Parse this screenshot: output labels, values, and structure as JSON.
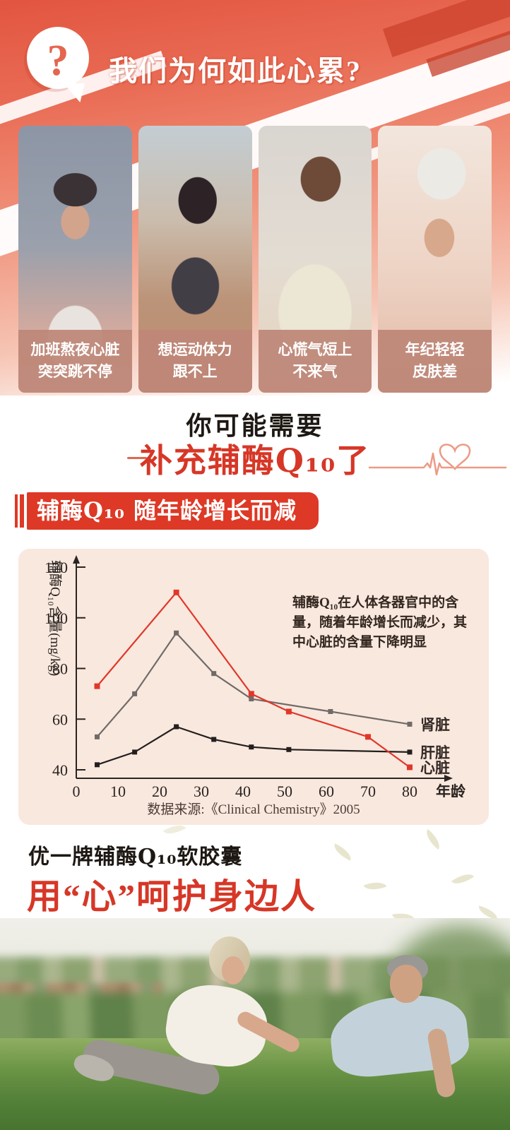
{
  "header": {
    "title": "我们为何如此心累?",
    "icon_glyph": "?"
  },
  "pain_points": [
    {
      "caption_line1": "加班熬夜心脏",
      "caption_line2": "突突跳不停"
    },
    {
      "caption_line1": "想运动体力",
      "caption_line2": "跟不上"
    },
    {
      "caption_line1": "心慌气短上",
      "caption_line2": "不来气"
    },
    {
      "caption_line1": "年纪轻轻",
      "caption_line2": "皮肤差"
    }
  ],
  "lead": {
    "line1": "你可能需要",
    "line2": "补充辅酶Q₁₀了"
  },
  "section": {
    "title": "辅酶Q₁₀ 随年龄增长而减少"
  },
  "chart_data": {
    "type": "line",
    "title": "",
    "xlabel": "年龄",
    "ylabel": "辅酶Q₁₀含量(mg/kg)",
    "xlim": [
      0,
      88
    ],
    "ylim": [
      36,
      124
    ],
    "x_ticks": [
      0,
      10,
      20,
      30,
      40,
      50,
      60,
      70,
      80
    ],
    "y_ticks": [
      40,
      60,
      80,
      100,
      120
    ],
    "grid": false,
    "legend_position": "line-end",
    "annotation": [
      "辅酶Q₁₀在人体各器官中的含",
      "量，随着年龄增长而减少，其",
      "中心脏的含量下降明显"
    ],
    "series": [
      {
        "name": "心脏",
        "color": "#e0372a",
        "points": [
          [
            5,
            73
          ],
          [
            24,
            110
          ],
          [
            42,
            70
          ],
          [
            51,
            63
          ],
          [
            70,
            53
          ],
          [
            80,
            41
          ]
        ]
      },
      {
        "name": "肾脏",
        "color": "#716b68",
        "points": [
          [
            5,
            53
          ],
          [
            14,
            70
          ],
          [
            24,
            94
          ],
          [
            33,
            78
          ],
          [
            42,
            68
          ],
          [
            61,
            63
          ],
          [
            80,
            58
          ]
        ]
      },
      {
        "name": "肝脏",
        "color": "#241f1e",
        "points": [
          [
            5,
            42
          ],
          [
            14,
            47
          ],
          [
            24,
            57
          ],
          [
            33,
            52
          ],
          [
            42,
            49
          ],
          [
            51,
            48
          ],
          [
            80,
            47
          ]
        ]
      }
    ],
    "source": "数据来源:《Clinical Chemistry》2005"
  },
  "brand": {
    "product": "优一牌辅酶Q₁₀软胶囊",
    "slogan": "用“心”呵护身边人"
  },
  "colors": {
    "accent_red": "#dd3926",
    "headline_red": "#d63727",
    "hero_coral": "#e4664f",
    "panel_pink": "#f9e8de",
    "caption_rose": "#bd8677",
    "ecg_salmon": "#ec9b85"
  }
}
